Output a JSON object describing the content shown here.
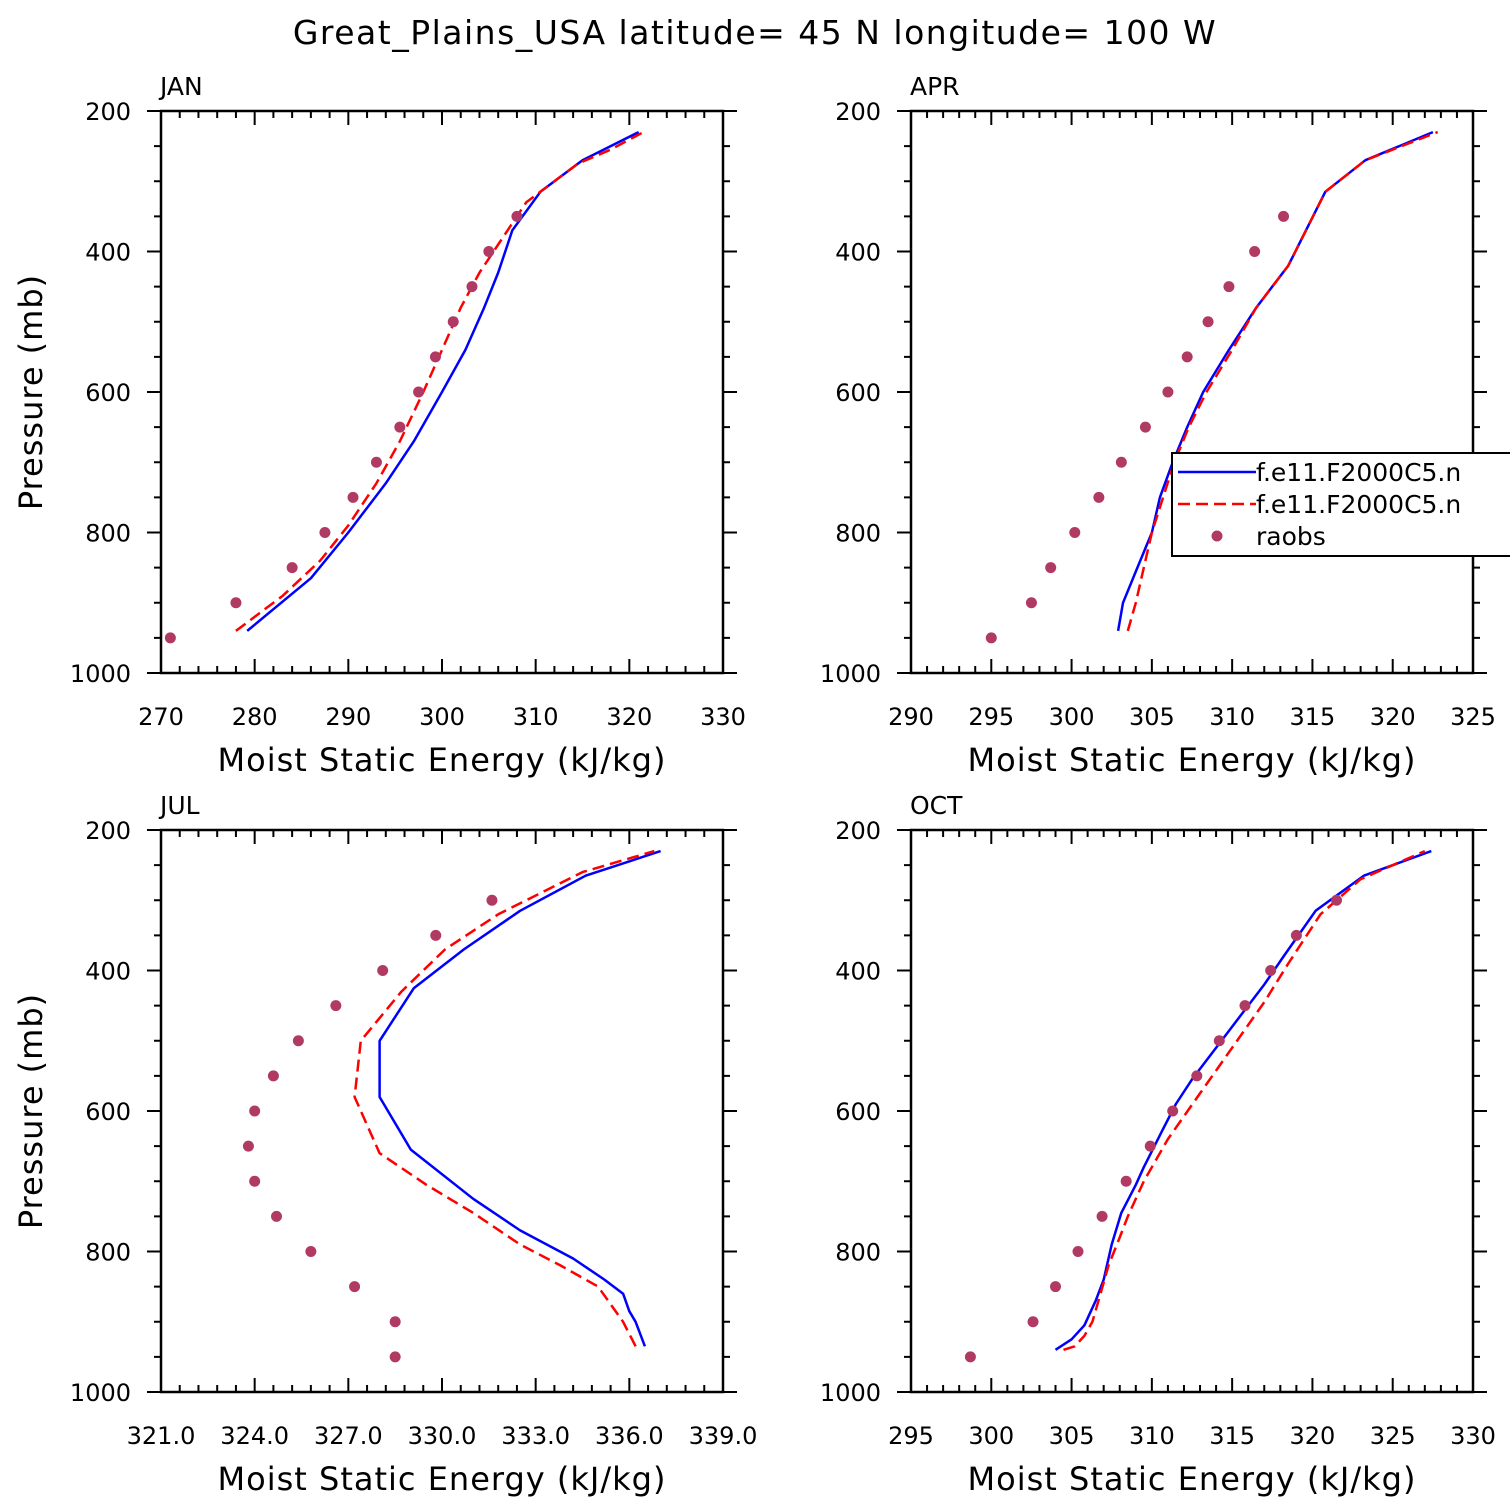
{
  "title": "Great_Plains_USA  latitude= 45 N longitude= 100 W",
  "colors": {
    "model1": "#0000ff",
    "model2": "#ff0000",
    "raobs": "#b03a64"
  },
  "legend": [
    {
      "label": "f.e11.F2000C5.n",
      "style": "solid-blue"
    },
    {
      "label": "f.e11.F2000C5.n",
      "style": "dashed-red"
    },
    {
      "label": "raobs",
      "style": "dots"
    }
  ],
  "chart_data": [
    {
      "type": "line",
      "panel": "JAN",
      "xlabel": "Moist Static Energy (kJ/kg)",
      "ylabel": "Pressure (mb)",
      "xlim": [
        270,
        330
      ],
      "ylim": [
        1000,
        200
      ],
      "x_ticks": [
        "270",
        "280",
        "290",
        "300",
        "310",
        "320",
        "330"
      ],
      "y_ticks": [
        "200",
        "400",
        "600",
        "800",
        "1000"
      ],
      "series": [
        {
          "name": "f.e11.F2000C5.n",
          "style": "solid",
          "points": [
            [
              279.2,
              940
            ],
            [
              286,
              865
            ],
            [
              290,
              800
            ],
            [
              294,
              730
            ],
            [
              297,
              670
            ],
            [
              300,
              600
            ],
            [
              302.5,
              540
            ],
            [
              304.5,
              480
            ],
            [
              306,
              430
            ],
            [
              307.5,
              370
            ],
            [
              310.5,
              315
            ],
            [
              315,
              270
            ],
            [
              321,
              230
            ]
          ]
        },
        {
          "name": "f.e11.F2000C5.n",
          "style": "dashed",
          "points": [
            [
              278,
              940
            ],
            [
              283,
              890
            ],
            [
              287,
              840
            ],
            [
              290,
              790
            ],
            [
              293,
              730
            ],
            [
              295.5,
              670
            ],
            [
              298,
              600
            ],
            [
              300,
              540
            ],
            [
              302,
              480
            ],
            [
              304,
              430
            ],
            [
              306,
              390
            ],
            [
              309,
              330
            ],
            [
              311,
              310
            ],
            [
              314.5,
              275
            ],
            [
              318,
              255
            ],
            [
              321.5,
              230
            ]
          ]
        },
        {
          "name": "raobs",
          "style": "dots",
          "points": [
            [
              271,
              950
            ],
            [
              278,
              900
            ],
            [
              284,
              850
            ],
            [
              287.5,
              800
            ],
            [
              290.5,
              750
            ],
            [
              293,
              700
            ],
            [
              295.5,
              650
            ],
            [
              297.5,
              600
            ],
            [
              299.3,
              550
            ],
            [
              301.2,
              500
            ],
            [
              303.2,
              450
            ],
            [
              305,
              400
            ],
            [
              308,
              350
            ]
          ]
        }
      ]
    },
    {
      "type": "line",
      "panel": "APR",
      "xlabel": "Moist Static Energy (kJ/kg)",
      "ylabel": "",
      "xlim": [
        290,
        325
      ],
      "ylim": [
        1000,
        200
      ],
      "x_ticks": [
        "290",
        "295",
        "300",
        "305",
        "310",
        "315",
        "320",
        "325"
      ],
      "y_ticks": [
        "200",
        "400",
        "600",
        "800",
        "1000"
      ],
      "series": [
        {
          "name": "f.e11.F2000C5.n",
          "style": "solid",
          "points": [
            [
              302.9,
              940
            ],
            [
              303.2,
              900
            ],
            [
              304.1,
              850
            ],
            [
              305,
              800
            ],
            [
              305.5,
              750
            ],
            [
              306.3,
              700
            ],
            [
              307.2,
              650
            ],
            [
              308.2,
              600
            ],
            [
              309.8,
              540
            ],
            [
              311.5,
              480
            ],
            [
              313.5,
              420
            ],
            [
              315.8,
              315
            ],
            [
              318.3,
              270
            ],
            [
              322.5,
              230
            ]
          ]
        },
        {
          "name": "f.e11.F2000C5.n",
          "style": "dashed",
          "points": [
            [
              303.5,
              940
            ],
            [
              304,
              900
            ],
            [
              304.5,
              850
            ],
            [
              305,
              800
            ],
            [
              305.7,
              750
            ],
            [
              306.4,
              700
            ],
            [
              307.3,
              650
            ],
            [
              308.4,
              600
            ],
            [
              310,
              540
            ],
            [
              311.5,
              480
            ],
            [
              313.5,
              420
            ],
            [
              315.8,
              315
            ],
            [
              318.3,
              270
            ],
            [
              322.8,
              230
            ]
          ]
        },
        {
          "name": "raobs",
          "style": "dots",
          "points": [
            [
              295,
              950
            ],
            [
              297.5,
              900
            ],
            [
              298.7,
              850
            ],
            [
              300.2,
              800
            ],
            [
              301.7,
              750
            ],
            [
              303.1,
              700
            ],
            [
              304.6,
              650
            ],
            [
              306,
              600
            ],
            [
              307.2,
              550
            ],
            [
              308.5,
              500
            ],
            [
              309.8,
              450
            ],
            [
              311.4,
              400
            ],
            [
              313.2,
              350
            ]
          ]
        }
      ]
    },
    {
      "type": "line",
      "panel": "JUL",
      "xlabel": "Moist Static Energy (kJ/kg)",
      "ylabel": "Pressure (mb)",
      "xlim": [
        321,
        339
      ],
      "ylim": [
        1000,
        200
      ],
      "x_ticks": [
        "321.0",
        "324.0",
        "327.0",
        "330.0",
        "333.0",
        "336.0",
        "339.0"
      ],
      "y_ticks": [
        "200",
        "400",
        "600",
        "800",
        "1000"
      ],
      "series": [
        {
          "name": "f.e11.F2000C5.n",
          "style": "solid",
          "points": [
            [
              336.5,
              935
            ],
            [
              336.2,
              900
            ],
            [
              336,
              885
            ],
            [
              335.8,
              860
            ],
            [
              335.2,
              840
            ],
            [
              334.2,
              810
            ],
            [
              332.5,
              770
            ],
            [
              331,
              725
            ],
            [
              329,
              655
            ],
            [
              328,
              580
            ],
            [
              328,
              500
            ],
            [
              329.1,
              425
            ],
            [
              330.7,
              370
            ],
            [
              332.5,
              315
            ],
            [
              334.6,
              265
            ],
            [
              337,
              230
            ]
          ]
        },
        {
          "name": "f.e11.F2000C5.n",
          "style": "dashed",
          "points": [
            [
              336.2,
              935
            ],
            [
              335.8,
              900
            ],
            [
              335,
              850
            ],
            [
              333.8,
              820
            ],
            [
              332.5,
              790
            ],
            [
              331,
              745
            ],
            [
              329.5,
              705
            ],
            [
              328,
              660
            ],
            [
              327.2,
              580
            ],
            [
              327.4,
              500
            ],
            [
              328.7,
              430
            ],
            [
              330.1,
              370
            ],
            [
              331.8,
              320
            ],
            [
              334.5,
              260
            ],
            [
              336.8,
              230
            ]
          ]
        },
        {
          "name": "raobs",
          "style": "dots",
          "points": [
            [
              328.5,
              950
            ],
            [
              328.5,
              900
            ],
            [
              327.2,
              850
            ],
            [
              325.8,
              800
            ],
            [
              324.7,
              750
            ],
            [
              324,
              700
            ],
            [
              323.8,
              650
            ],
            [
              324,
              600
            ],
            [
              324.6,
              550
            ],
            [
              325.4,
              500
            ],
            [
              326.6,
              450
            ],
            [
              328.1,
              400
            ],
            [
              329.8,
              350
            ],
            [
              331.6,
              300
            ]
          ]
        }
      ]
    },
    {
      "type": "line",
      "panel": "OCT",
      "xlabel": "Moist Static Energy (kJ/kg)",
      "ylabel": "",
      "xlim": [
        295,
        330
      ],
      "ylim": [
        1000,
        200
      ],
      "x_ticks": [
        "295",
        "300",
        "305",
        "310",
        "315",
        "320",
        "325",
        "330"
      ],
      "y_ticks": [
        "200",
        "400",
        "600",
        "800",
        "1000"
      ],
      "series": [
        {
          "name": "f.e11.F2000C5.n",
          "style": "solid",
          "points": [
            [
              304,
              940
            ],
            [
              305,
              925
            ],
            [
              305.8,
              905
            ],
            [
              306.5,
              870
            ],
            [
              307,
              840
            ],
            [
              307.5,
              790
            ],
            [
              308.1,
              745
            ],
            [
              309,
              705
            ],
            [
              309.5,
              680
            ],
            [
              310.6,
              630
            ],
            [
              311.5,
              590
            ],
            [
              312.5,
              555
            ],
            [
              315,
              480
            ],
            [
              317,
              420
            ],
            [
              318.2,
              380
            ],
            [
              320.2,
              315
            ],
            [
              323.2,
              265
            ],
            [
              327.4,
              230
            ]
          ]
        },
        {
          "name": "f.e11.F2000C5.n",
          "style": "dashed",
          "points": [
            [
              304.5,
              940
            ],
            [
              305.2,
              935
            ],
            [
              305.8,
              920
            ],
            [
              306.3,
              900
            ],
            [
              306.8,
              860
            ],
            [
              307.3,
              820
            ],
            [
              308,
              780
            ],
            [
              308.5,
              750
            ],
            [
              309.5,
              700
            ],
            [
              311,
              640
            ],
            [
              313,
              575
            ],
            [
              315,
              510
            ],
            [
              317,
              445
            ],
            [
              318.5,
              390
            ],
            [
              320.5,
              320
            ],
            [
              323,
              270
            ],
            [
              327,
              230
            ]
          ]
        },
        {
          "name": "raobs",
          "style": "dots",
          "points": [
            [
              298.7,
              950
            ],
            [
              302.6,
              900
            ],
            [
              304,
              850
            ],
            [
              305.4,
              800
            ],
            [
              306.9,
              750
            ],
            [
              308.4,
              700
            ],
            [
              309.9,
              650
            ],
            [
              311.3,
              600
            ],
            [
              312.8,
              550
            ],
            [
              314.2,
              500
            ],
            [
              315.8,
              450
            ],
            [
              317.4,
              400
            ],
            [
              319,
              350
            ],
            [
              321.5,
              300
            ]
          ]
        }
      ]
    }
  ]
}
